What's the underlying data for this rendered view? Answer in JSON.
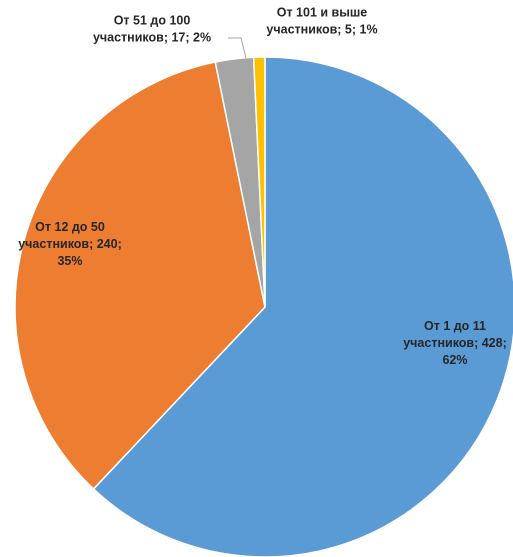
{
  "chart_data": {
    "type": "pie",
    "title": "",
    "categories": [
      "От 1 до 11 участников",
      "От 12 до 50 участников",
      "От 51 до 100 участников",
      "От 101 и выше участников"
    ],
    "values": [
      428,
      240,
      17,
      5
    ],
    "percents": [
      62,
      35,
      2,
      1
    ],
    "colors": [
      "#5b9bd5",
      "#ed7d31",
      "#a5a5a5",
      "#ffc000"
    ],
    "labels": [
      [
        "От 1 до 11",
        "участников; 428;",
        "62%"
      ],
      [
        "От 12 до 50",
        "участников; 240;",
        "35%"
      ],
      [
        "От 51 до 100",
        "участников; 17; 2%"
      ],
      [
        "От 101 и выше",
        "участников; 5; 1%"
      ]
    ],
    "start_angle_deg": 0,
    "direction": "clockwise",
    "legend": "none"
  }
}
